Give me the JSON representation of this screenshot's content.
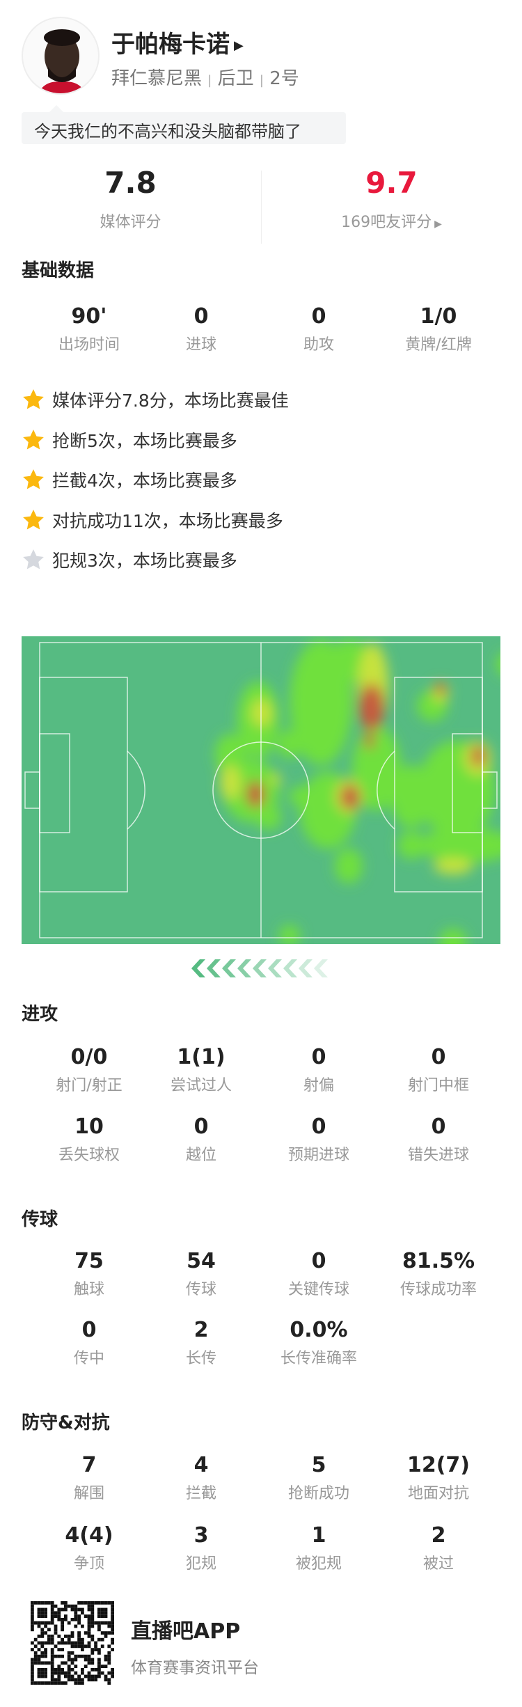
{
  "player": {
    "name": "于帕梅卡诺",
    "team": "拜仁慕尼黑",
    "position": "后卫",
    "number": "2号",
    "sep": "|"
  },
  "comment": "今天我仁的不高兴和没头脑都带脑了",
  "ratings": {
    "media": {
      "value": "7.8",
      "label": "媒体评分"
    },
    "fans": {
      "value": "9.7",
      "label": "169吧友评分",
      "color": "#e8193c"
    }
  },
  "basic": {
    "title": "基础数据",
    "stats": [
      {
        "value": "90'",
        "label": "出场时间"
      },
      {
        "value": "0",
        "label": "进球"
      },
      {
        "value": "0",
        "label": "助攻"
      },
      {
        "value": "1/0",
        "label": "黄牌/红牌"
      }
    ]
  },
  "highlights": [
    {
      "text": "媒体评分7.8分，本场比赛最佳",
      "star": "gold"
    },
    {
      "text": "抢断5次，本场比赛最多",
      "star": "gold"
    },
    {
      "text": "拦截4次，本场比赛最多",
      "star": "gold"
    },
    {
      "text": "对抗成功11次，本场比赛最多",
      "star": "gold"
    },
    {
      "text": "犯规3次，本场比赛最多",
      "star": "grey"
    }
  ],
  "attack": {
    "title": "进攻",
    "stats": [
      {
        "value": "0/0",
        "label": "射门/射正"
      },
      {
        "value": "1(1)",
        "label": "尝试过人"
      },
      {
        "value": "0",
        "label": "射偏"
      },
      {
        "value": "0",
        "label": "射门中框"
      },
      {
        "value": "10",
        "label": "丢失球权"
      },
      {
        "value": "0",
        "label": "越位"
      },
      {
        "value": "0",
        "label": "预期进球"
      },
      {
        "value": "0",
        "label": "错失进球"
      }
    ]
  },
  "passing": {
    "title": "传球",
    "stats": [
      {
        "value": "75",
        "label": "触球"
      },
      {
        "value": "54",
        "label": "传球"
      },
      {
        "value": "0",
        "label": "关键传球"
      },
      {
        "value": "81.5%",
        "label": "传球成功率"
      },
      {
        "value": "0",
        "label": "传中"
      },
      {
        "value": "2",
        "label": "长传"
      },
      {
        "value": "0.0%",
        "label": "长传准确率"
      }
    ]
  },
  "defense": {
    "title": "防守&对抗",
    "stats": [
      {
        "value": "7",
        "label": "解围"
      },
      {
        "value": "4",
        "label": "拦截"
      },
      {
        "value": "5",
        "label": "抢断成功"
      },
      {
        "value": "12(7)",
        "label": "地面对抗"
      },
      {
        "value": "4(4)",
        "label": "争顶"
      },
      {
        "value": "3",
        "label": "犯规"
      },
      {
        "value": "1",
        "label": "被犯规"
      },
      {
        "value": "2",
        "label": "被过"
      }
    ]
  },
  "footer": {
    "app_name": "直播吧APP",
    "tagline": "体育赛事资讯平台"
  },
  "colors": {
    "pitch": "#56bb82",
    "star_gold": "#fbb80f",
    "star_grey": "#d5d8de",
    "fans_rating": "#e8193c"
  },
  "icons": {
    "star": "star-icon",
    "arrow": "triangle-right-icon",
    "direction": "chevrons-left-icon",
    "qr": "qr-code"
  }
}
